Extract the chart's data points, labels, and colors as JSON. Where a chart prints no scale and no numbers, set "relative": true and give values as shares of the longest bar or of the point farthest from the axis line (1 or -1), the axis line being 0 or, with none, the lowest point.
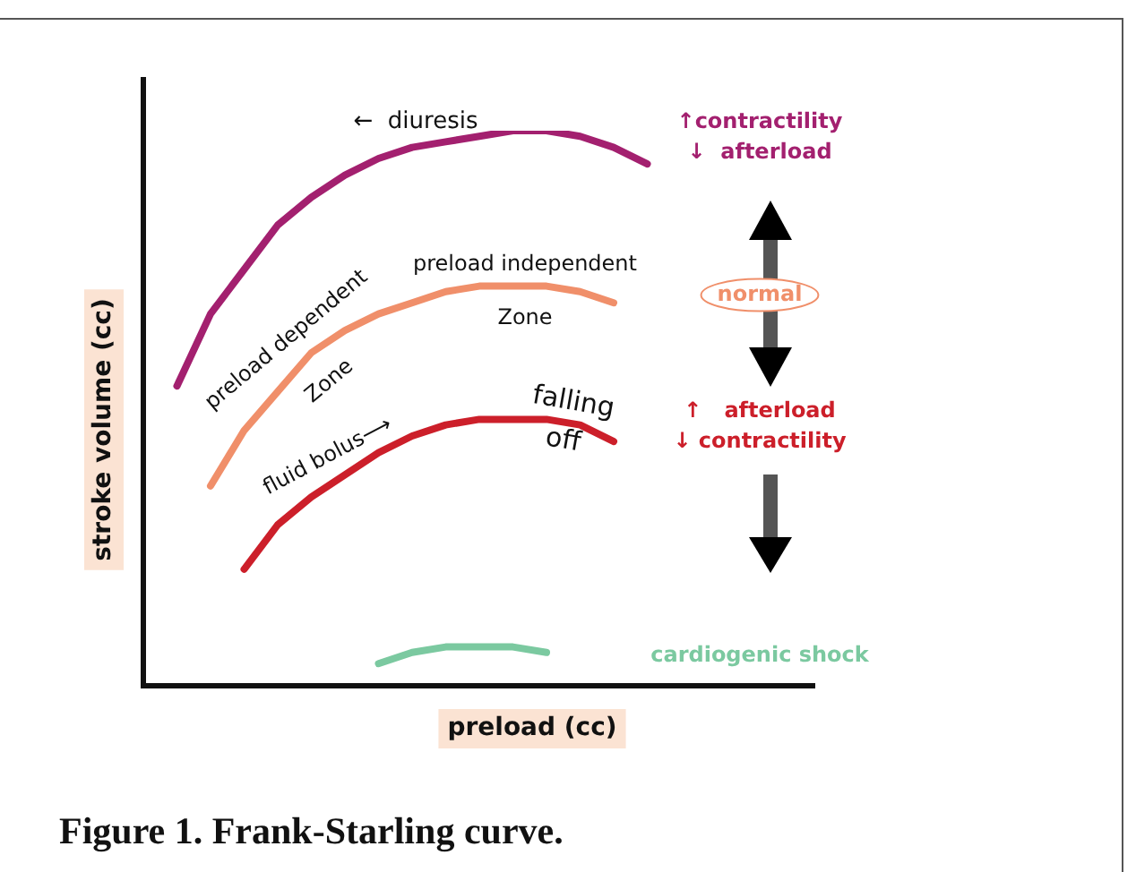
{
  "chart_data": {
    "type": "line",
    "relative": true,
    "marker": "none",
    "line_style": "solid",
    "xlabel": "preload (cc)",
    "ylabel": "stroke volume (cc)",
    "categories": [
      null,
      null,
      null,
      null,
      null,
      null,
      null,
      null,
      null,
      null,
      null,
      null,
      null,
      null,
      null,
      null,
      null,
      null,
      null,
      null,
      null
    ],
    "series": [
      {
        "name": "↑contractility\n↓  afterload",
        "color": "#a3206f",
        "values": [
          null,
          0.54,
          0.67,
          0.75,
          0.83,
          0.88,
          0.92,
          0.95,
          0.97,
          0.98,
          0.99,
          1,
          1,
          0.99,
          0.97,
          0.94,
          null,
          null,
          null,
          null,
          null
        ]
      },
      {
        "name": "normal",
        "color": "#f08f6a",
        "values": [
          null,
          null,
          0.36,
          0.46,
          0.53,
          0.6,
          0.64,
          0.67,
          0.69,
          0.71,
          0.72,
          0.72,
          0.72,
          0.71,
          0.69,
          null,
          null,
          null,
          null,
          null,
          null
        ]
      },
      {
        "name": "↑   afterload\n↓ contractility",
        "color": "#cc1f2a",
        "values": [
          null,
          null,
          null,
          0.21,
          0.29,
          0.34,
          0.38,
          0.42,
          0.45,
          0.47,
          0.48,
          0.48,
          0.48,
          0.47,
          0.44,
          null,
          null,
          null,
          null,
          null,
          null
        ]
      },
      {
        "name": "cardiogenic shock",
        "color": "#7bc9a0",
        "values": [
          null,
          null,
          null,
          null,
          null,
          null,
          null,
          0.04,
          0.06,
          0.07,
          0.07,
          0.07,
          0.06,
          null,
          null,
          null,
          null,
          null,
          null,
          null,
          null
        ]
      }
    ],
    "annotations": [
      "←  diuresis",
      "preload dependent",
      "Zone",
      "preload independent",
      "Zone",
      "fluid bolus⟶",
      "falling\noff",
      "Figure 1. Frank-Starling curve."
    ]
  }
}
